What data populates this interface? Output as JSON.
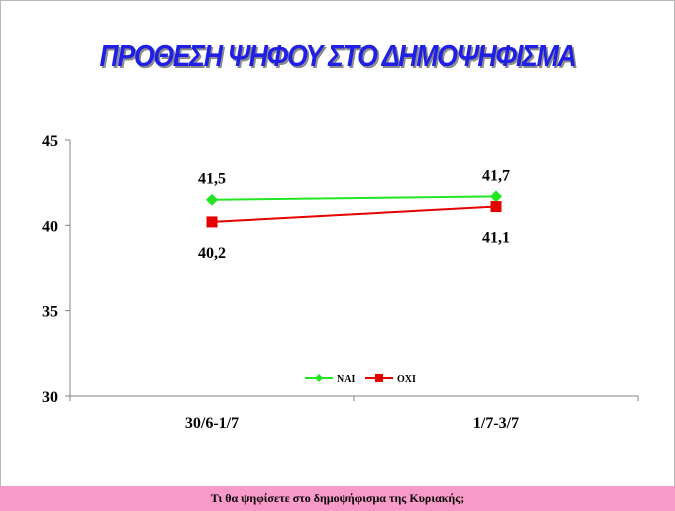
{
  "title": "ΠΡΟΘΕΣΗ ΨΗΦΟΥ ΣΤΟ ΔΗΜΟΨΗΦΙΣΜΑ",
  "footer_text": "Τι θα ψηφίσετε στο δημοψήφισμα της Κυριακής;",
  "chart_data": {
    "type": "line",
    "categories": [
      "30/6-1/7",
      "1/7-3/7"
    ],
    "series": [
      {
        "name": "ΝΑΙ",
        "values": [
          41.5,
          41.7
        ],
        "labels": [
          "41,5",
          "41,7"
        ],
        "color": "#22e622",
        "marker": "diamond"
      },
      {
        "name": "ΟΧΙ",
        "values": [
          40.2,
          41.1
        ],
        "labels": [
          "40,2",
          "41,1"
        ],
        "color": "#e60000",
        "marker": "square"
      }
    ],
    "ylim": [
      30,
      45
    ],
    "yticks": [
      30,
      35,
      40,
      45
    ],
    "xlabel": "",
    "ylabel": "",
    "grid": false,
    "legend": "bottom-center"
  }
}
